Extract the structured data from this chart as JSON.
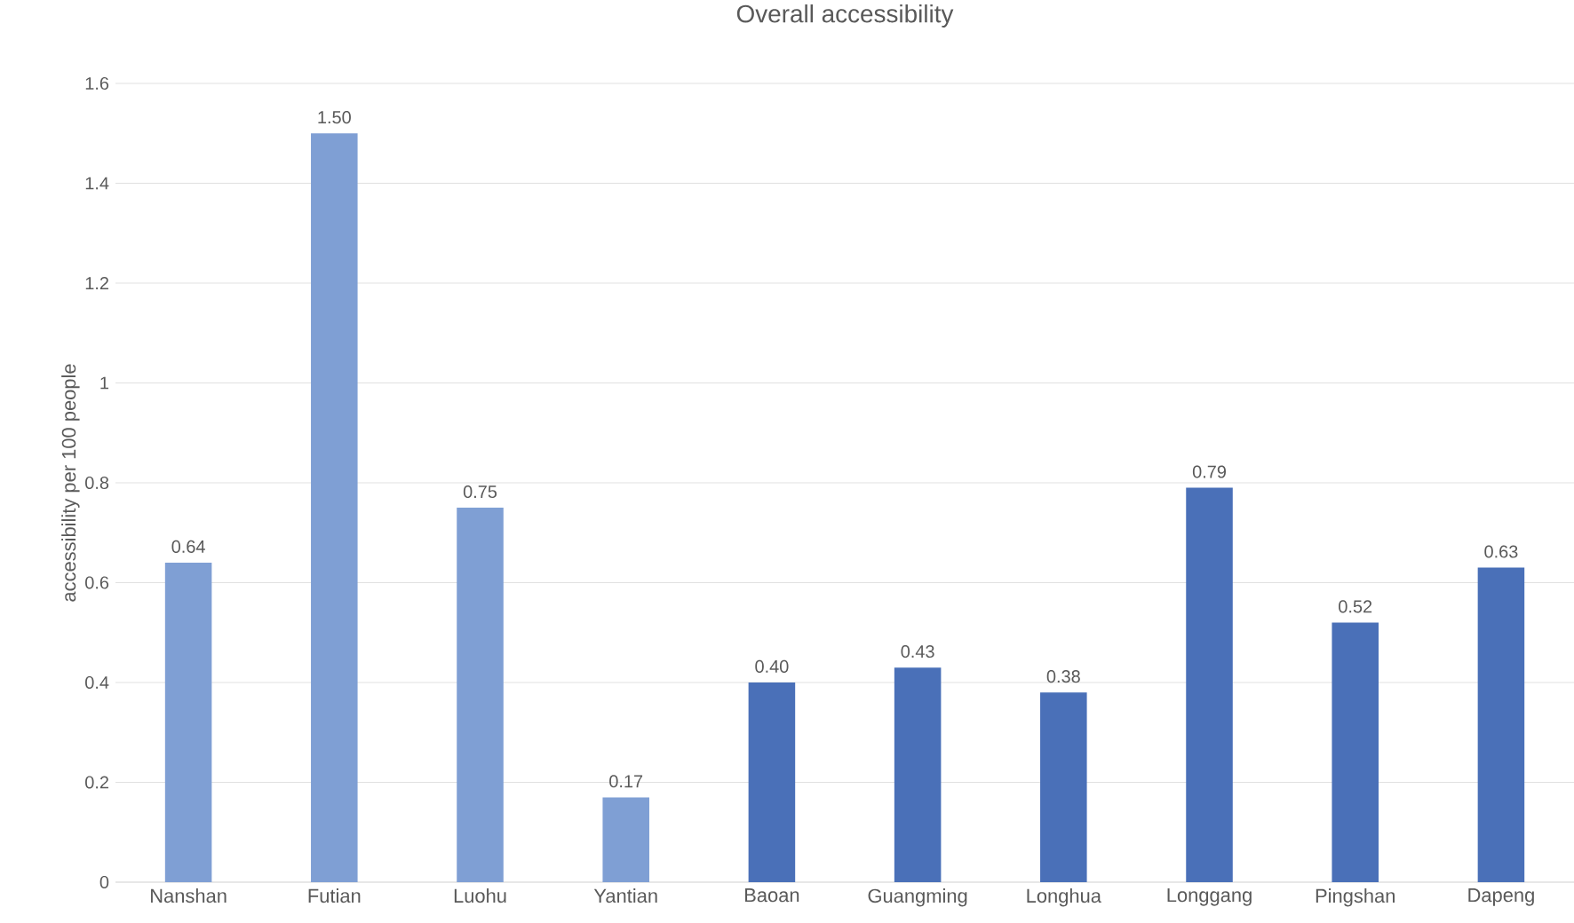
{
  "chart_data": {
    "type": "bar",
    "title": "Overall accessibility",
    "ylabel": "accessibility per 100 people",
    "categories": [
      "Nanshan",
      "Futian",
      "Luohu",
      "Yantian",
      "Baoan",
      "Guangming",
      "Longhua",
      "Longgang",
      "Pingshan",
      "Dapeng"
    ],
    "values": [
      0.64,
      1.5,
      0.75,
      0.17,
      0.4,
      0.43,
      0.38,
      0.79,
      0.52,
      0.63
    ],
    "colors": [
      "#7f9fd4",
      "#7f9fd4",
      "#7f9fd4",
      "#7f9fd4",
      "#4a70b8",
      "#4a70b8",
      "#4a70b8",
      "#4a70b8",
      "#4a70b8",
      "#4a70b8"
    ],
    "value_labels": [
      "0.64",
      "1.50",
      "0.75",
      "0.17",
      "0.40",
      "0.43",
      "0.38",
      "0.79",
      "0.52",
      "0.63"
    ],
    "ylim": [
      0,
      1.6
    ],
    "yticks": [
      0,
      0.2,
      0.4,
      0.6,
      0.8,
      1,
      1.2,
      1.4,
      1.6
    ],
    "grid": "y"
  }
}
